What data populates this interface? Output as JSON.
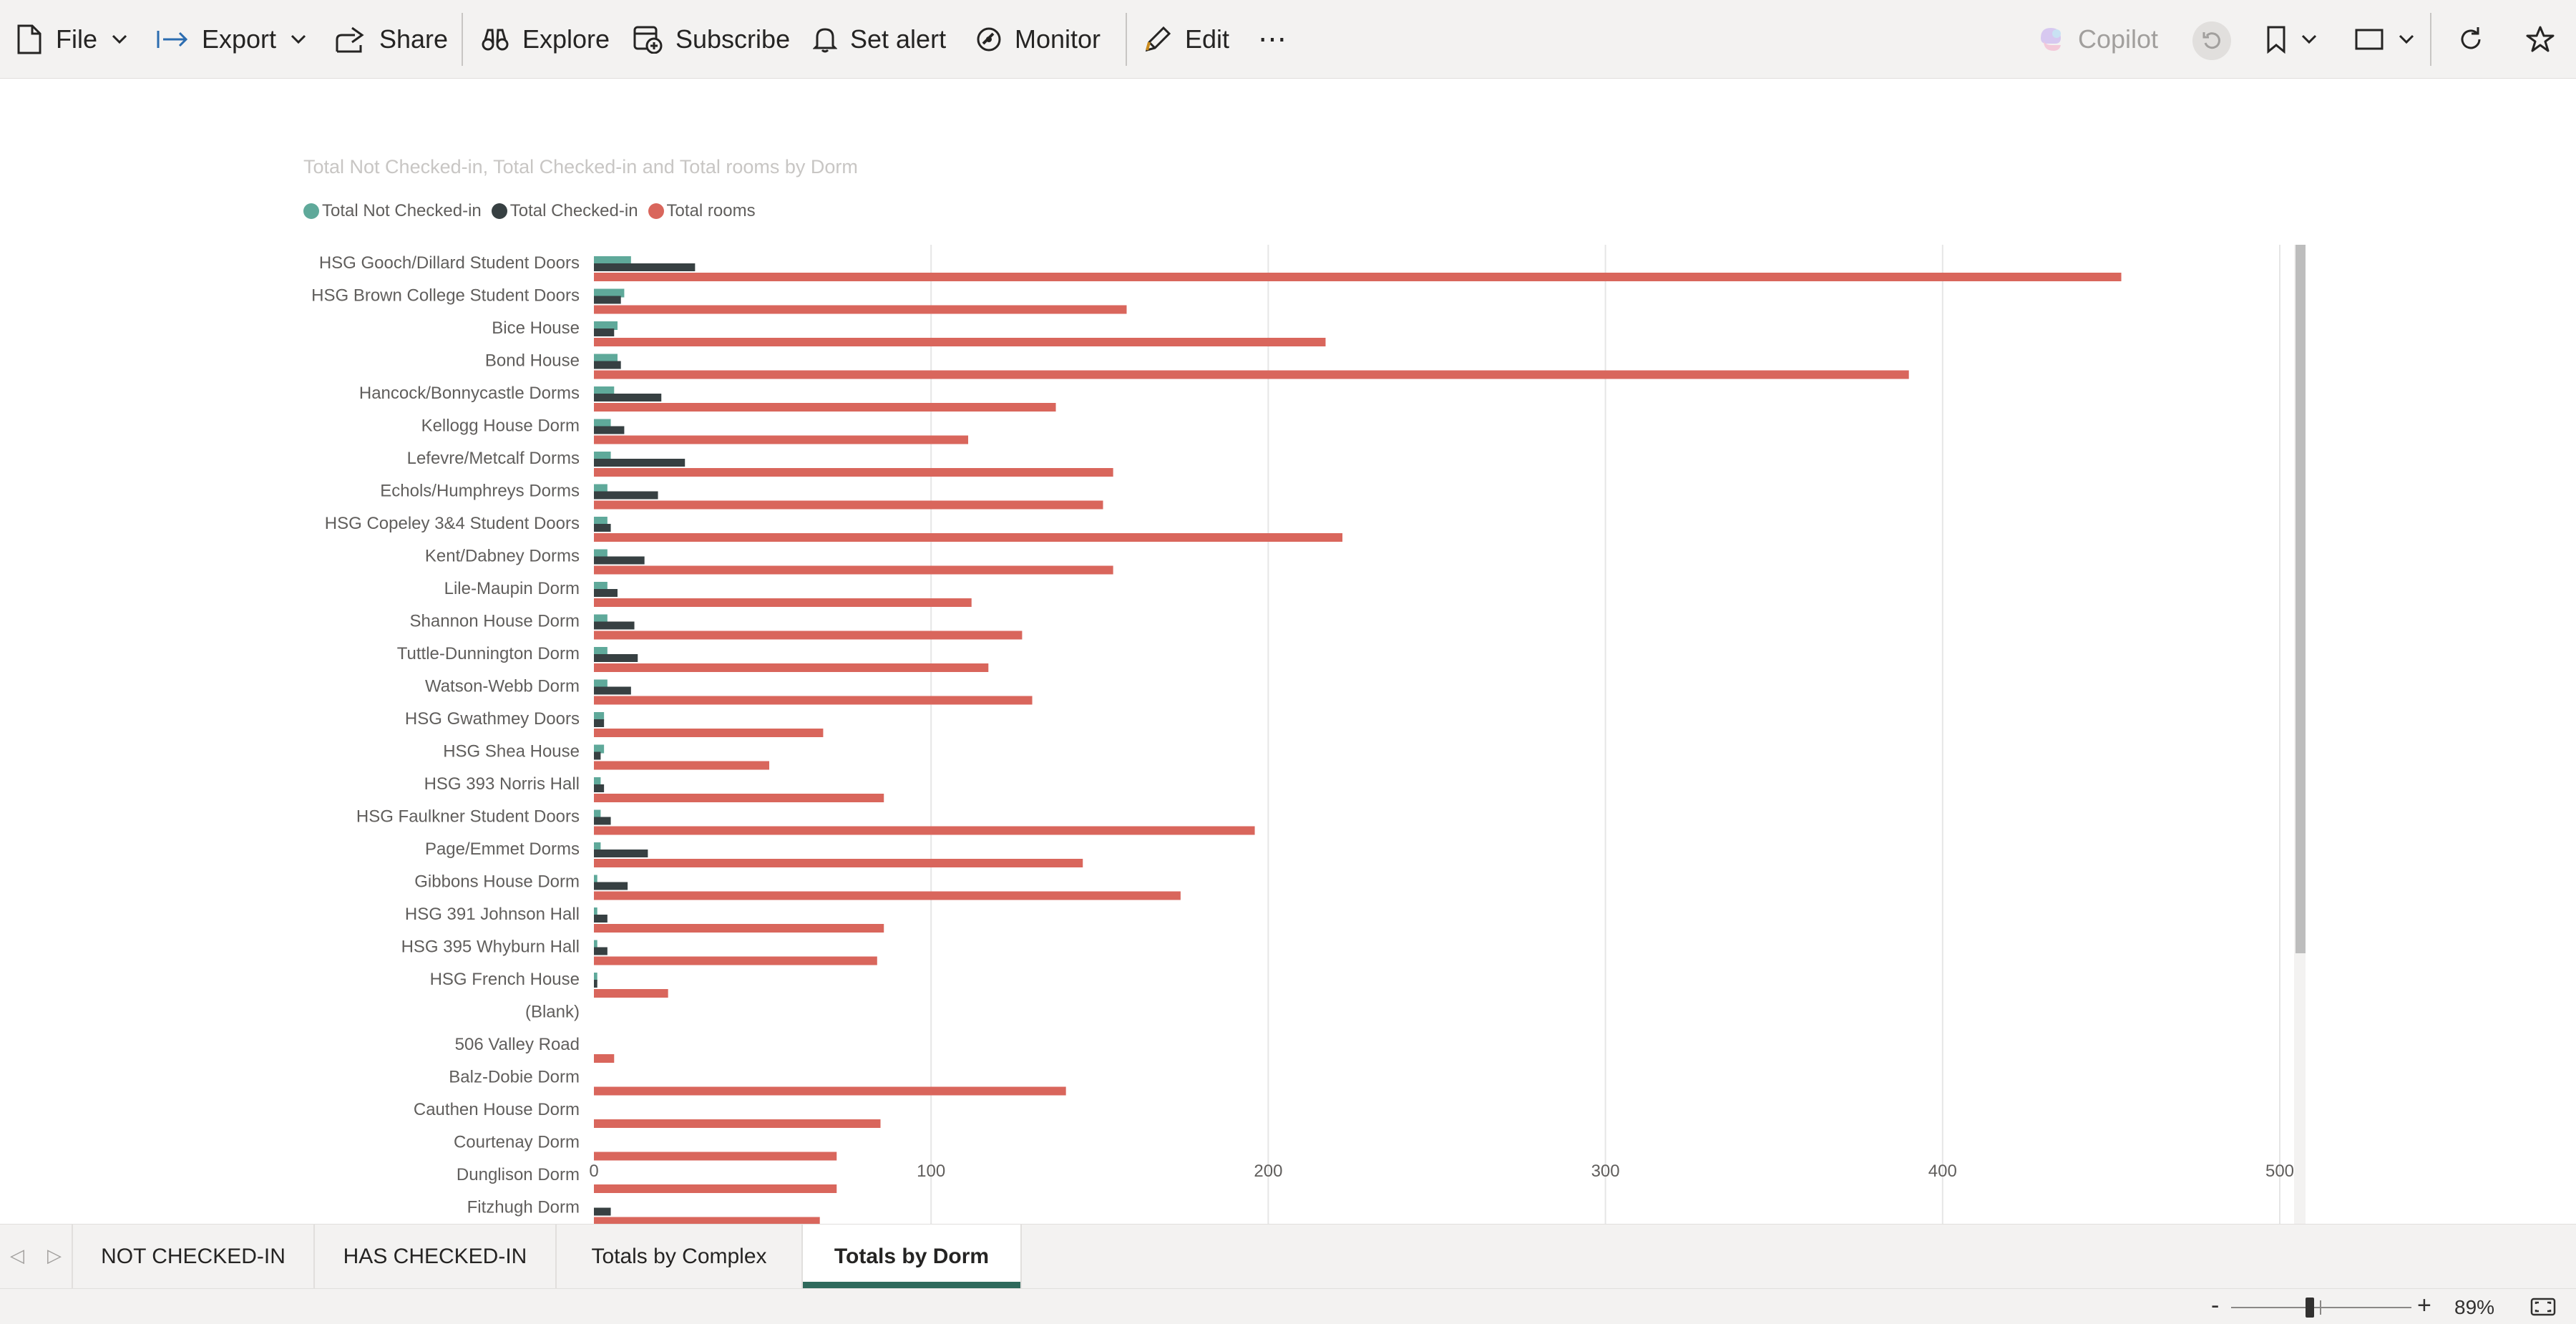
{
  "toolbar": {
    "file": "File",
    "export": "Export",
    "share": "Share",
    "explore": "Explore",
    "subscribe": "Subscribe",
    "set_alert": "Set alert",
    "monitor": "Monitor",
    "edit": "Edit",
    "more": "⋯",
    "copilot": "Copilot"
  },
  "colors": {
    "not_checked_in": "#5fa99a",
    "checked_in": "#374042",
    "total_rooms": "#d9665c"
  },
  "chart_data": {
    "type": "bar",
    "orientation": "horizontal",
    "title": "Total Not Checked-in, Total Checked-in and Total rooms by Dorm",
    "legend": "top-left",
    "grid": true,
    "xlim": [
      0,
      500
    ],
    "xticks": [
      0,
      100,
      200,
      300,
      400,
      500
    ],
    "categories": [
      "HSG Gooch/Dillard Student Doors",
      "HSG Brown College Student Doors",
      "Bice House",
      "Bond House",
      "Hancock/Bonnycastle Dorms",
      "Kellogg House Dorm",
      "Lefevre/Metcalf Dorms",
      "Echols/Humphreys Dorms",
      "HSG Copeley 3&4 Student Doors",
      "Kent/Dabney Dorms",
      "Lile-Maupin Dorm",
      "Shannon House Dorm",
      "Tuttle-Dunnington Dorm",
      "Watson-Webb Dorm",
      "HSG Gwathmey Doors",
      "HSG Shea House",
      "HSG 393 Norris Hall",
      "HSG Faulkner Student Doors",
      "Page/Emmet Dorms",
      "Gibbons House Dorm",
      "HSG 391 Johnson Hall",
      "HSG 395 Whyburn Hall",
      "HSG French House",
      "(Blank)",
      "506 Valley Road",
      "Balz-Dobie Dorm",
      "Cauthen House Dorm",
      "Courtenay Dorm",
      "Dunglison Dorm",
      "Fitzhugh Dorm"
    ],
    "series": [
      {
        "name": "Total Not Checked-in",
        "values": [
          11,
          9,
          7,
          7,
          6,
          5,
          5,
          4,
          4,
          4,
          4,
          4,
          4,
          4,
          3,
          3,
          2,
          2,
          2,
          1,
          1,
          1,
          1,
          0,
          0,
          0,
          0,
          0,
          0,
          0
        ]
      },
      {
        "name": "Total Checked-in",
        "values": [
          30,
          8,
          6,
          8,
          20,
          9,
          27,
          19,
          5,
          15,
          7,
          12,
          13,
          11,
          3,
          2,
          3,
          5,
          16,
          10,
          4,
          4,
          1,
          0,
          0,
          0,
          0,
          0,
          0,
          5
        ]
      },
      {
        "name": "Total rooms",
        "values": [
          453,
          158,
          217,
          390,
          137,
          111,
          154,
          151,
          222,
          154,
          112,
          127,
          117,
          130,
          68,
          52,
          86,
          196,
          145,
          174,
          86,
          84,
          22,
          0,
          6,
          140,
          85,
          72,
          72,
          67
        ]
      }
    ]
  },
  "tabs": {
    "items": [
      {
        "label": "NOT CHECKED-IN"
      },
      {
        "label": "HAS CHECKED-IN"
      },
      {
        "label": "Totals by Complex"
      },
      {
        "label": "Totals by Dorm"
      }
    ],
    "active": "Totals by Dorm"
  },
  "status": {
    "zoom_minus": "-",
    "zoom_plus": "+",
    "zoom_level": "89%"
  }
}
